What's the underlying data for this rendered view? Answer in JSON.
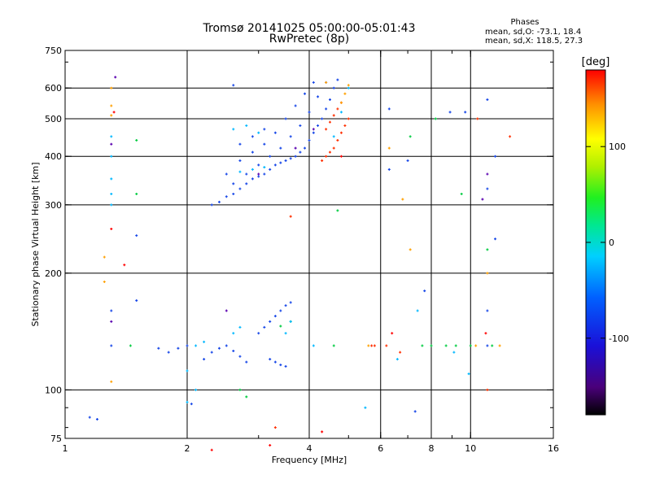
{
  "header": {
    "title_line1": "Tromsø 20141025 05:00:00-05:01:43",
    "title_line2": "RwPretec (8p)"
  },
  "phases_box": {
    "title": "Phases",
    "stat_o": "mean, sd,O: -73.1, 18.4",
    "stat_x": "mean, sd,X: 118.5, 27.3"
  },
  "chart_data": {
    "type": "scatter",
    "xlabel": "Frequency [MHz]",
    "ylabel": "Stationary phase Virtual Height [km]",
    "xscale": "log",
    "yscale": "log",
    "xlim": [
      1,
      16
    ],
    "ylim": [
      75,
      750
    ],
    "xticks": [
      1,
      2,
      4,
      6,
      8,
      10,
      16
    ],
    "xtick_labels": [
      "1",
      "2",
      "4",
      "6",
      "8",
      "10",
      "16"
    ],
    "yticks": [
      75,
      100,
      200,
      300,
      400,
      500,
      600,
      750
    ],
    "ytick_labels": [
      "75",
      "100",
      "200",
      "300",
      "400",
      "500",
      "600",
      "750"
    ],
    "x_gridlines": [
      2,
      4,
      6,
      8,
      10
    ],
    "y_gridlines": [
      100,
      200,
      300,
      400,
      500,
      600
    ],
    "grid": true,
    "colorbar": {
      "label": "[deg]",
      "range": [
        -180,
        180
      ],
      "ticks": [
        100,
        0,
        -100
      ],
      "tick_labels": [
        "100",
        "0",
        "-100"
      ]
    },
    "series": [
      {
        "points": [
          [
            2.3,
            300
          ],
          [
            2.4,
            305
          ],
          [
            2.5,
            315
          ],
          [
            2.6,
            320
          ],
          [
            2.7,
            330
          ],
          [
            2.8,
            340
          ],
          [
            2.9,
            350
          ],
          [
            3.0,
            355
          ],
          [
            3.1,
            360
          ],
          [
            3.2,
            370
          ],
          [
            3.3,
            380
          ],
          [
            3.4,
            385
          ],
          [
            3.5,
            390
          ],
          [
            3.6,
            395
          ],
          [
            3.7,
            400
          ],
          [
            3.8,
            410
          ],
          [
            3.9,
            420
          ],
          [
            4.0,
            440
          ],
          [
            4.1,
            460
          ],
          [
            4.2,
            480
          ],
          [
            4.3,
            500
          ],
          [
            4.4,
            530
          ],
          [
            4.5,
            560
          ],
          [
            4.6,
            600
          ],
          [
            4.7,
            630
          ],
          [
            2.6,
            340
          ],
          [
            2.8,
            360
          ],
          [
            3.0,
            380
          ],
          [
            3.2,
            400
          ],
          [
            3.4,
            420
          ],
          [
            3.6,
            450
          ],
          [
            3.8,
            480
          ],
          [
            4.0,
            520
          ],
          [
            4.2,
            570
          ],
          [
            4.4,
            620
          ],
          [
            2.5,
            360
          ],
          [
            2.7,
            390
          ],
          [
            2.9,
            410
          ],
          [
            3.1,
            430
          ],
          [
            3.3,
            460
          ],
          [
            3.5,
            500
          ],
          [
            3.7,
            540
          ],
          [
            3.9,
            580
          ],
          [
            4.1,
            620
          ],
          [
            2.7,
            430
          ],
          [
            2.9,
            450
          ],
          [
            3.1,
            470
          ],
          [
            2.6,
            610
          ],
          [
            2.2,
            120
          ],
          [
            2.3,
            125
          ],
          [
            2.4,
            128
          ],
          [
            2.5,
            130
          ],
          [
            2.6,
            126
          ],
          [
            2.7,
            122
          ],
          [
            2.8,
            118
          ],
          [
            1.8,
            125
          ],
          [
            1.9,
            128
          ],
          [
            2.0,
            130
          ],
          [
            1.7,
            128
          ],
          [
            3.0,
            140
          ],
          [
            3.1,
            145
          ],
          [
            3.2,
            150
          ],
          [
            3.3,
            155
          ],
          [
            3.4,
            160
          ],
          [
            3.5,
            165
          ],
          [
            3.6,
            168
          ],
          [
            3.2,
            120
          ],
          [
            3.3,
            118
          ],
          [
            3.4,
            116
          ],
          [
            3.5,
            115
          ],
          [
            1.3,
            160
          ],
          [
            1.3,
            130
          ],
          [
            1.5,
            250
          ],
          [
            1.5,
            170
          ],
          [
            6.3,
            530
          ],
          [
            6.3,
            370
          ],
          [
            7.0,
            390
          ],
          [
            8.9,
            520
          ],
          [
            9.7,
            520
          ],
          [
            11.0,
            560
          ],
          [
            11.0,
            330
          ],
          [
            11.0,
            130
          ],
          [
            11.0,
            160
          ],
          [
            11.5,
            400
          ],
          [
            11.5,
            245
          ],
          [
            1.15,
            85
          ],
          [
            1.2,
            84
          ],
          [
            2.05,
            92
          ],
          [
            7.3,
            88
          ],
          [
            7.7,
            180
          ]
        ]
      },
      {
        "points": [
          [
            4.3,
            390
          ],
          [
            4.4,
            400
          ],
          [
            4.5,
            410
          ],
          [
            4.6,
            420
          ],
          [
            4.7,
            440
          ],
          [
            4.8,
            460
          ],
          [
            4.9,
            480
          ],
          [
            5.0,
            500
          ],
          [
            4.4,
            470
          ],
          [
            4.5,
            490
          ],
          [
            4.6,
            510
          ],
          [
            4.7,
            530
          ],
          [
            4.8,
            550
          ],
          [
            3.6,
            280
          ],
          [
            3.3,
            80
          ],
          [
            5.7,
            130
          ],
          [
            5.8,
            130
          ],
          [
            6.2,
            130
          ],
          [
            6.7,
            125
          ],
          [
            11.0,
            100
          ],
          [
            12.5,
            450
          ],
          [
            10.4,
            500
          ]
        ]
      },
      {
        "points": [
          [
            4.8,
            550
          ],
          [
            4.9,
            580
          ],
          [
            5.0,
            610
          ],
          [
            4.4,
            620
          ],
          [
            1.3,
            600
          ],
          [
            1.3,
            540
          ],
          [
            1.3,
            510
          ],
          [
            1.25,
            220
          ],
          [
            1.25,
            190
          ],
          [
            1.3,
            105
          ],
          [
            6.3,
            420
          ],
          [
            6.8,
            310
          ],
          [
            7.1,
            230
          ],
          [
            5.6,
            130
          ],
          [
            10.3,
            130
          ],
          [
            11.8,
            130
          ],
          [
            11.0,
            200
          ]
        ]
      },
      {
        "points": [
          [
            4.6,
            130
          ],
          [
            4.7,
            290
          ],
          [
            3.6,
            150
          ],
          [
            3.4,
            146
          ],
          [
            2.7,
            100
          ],
          [
            2.8,
            96
          ],
          [
            1.5,
            440
          ],
          [
            1.5,
            320
          ],
          [
            1.45,
            130
          ],
          [
            7.1,
            450
          ],
          [
            9.5,
            320
          ],
          [
            8.2,
            500
          ],
          [
            11.0,
            230
          ],
          [
            8.0,
            130
          ],
          [
            7.6,
            130
          ],
          [
            8.7,
            130
          ],
          [
            9.2,
            130
          ],
          [
            10.0,
            130
          ],
          [
            11.3,
            130
          ]
        ]
      },
      {
        "points": [
          [
            1.3,
            450
          ],
          [
            1.3,
            400
          ],
          [
            1.3,
            350
          ],
          [
            1.3,
            320
          ],
          [
            1.3,
            300
          ],
          [
            2.7,
            365
          ],
          [
            2.9,
            370
          ],
          [
            3.1,
            375
          ],
          [
            2.6,
            470
          ],
          [
            2.8,
            480
          ],
          [
            3.0,
            460
          ],
          [
            2.1,
            130
          ],
          [
            2.2,
            133
          ],
          [
            2.0,
            112
          ],
          [
            2.1,
            100
          ],
          [
            2.0,
            93
          ],
          [
            2.6,
            140
          ],
          [
            2.7,
            145
          ],
          [
            3.5,
            140
          ],
          [
            3.6,
            150
          ],
          [
            4.6,
            450
          ],
          [
            4.8,
            520
          ],
          [
            5.0,
            600
          ],
          [
            4.1,
            130
          ],
          [
            5.5,
            90
          ],
          [
            6.6,
            120
          ],
          [
            9.1,
            125
          ],
          [
            9.9,
            110
          ],
          [
            7.4,
            160
          ]
        ]
      },
      {
        "points": [
          [
            1.32,
            520
          ],
          [
            1.4,
            210
          ],
          [
            1.3,
            260
          ],
          [
            2.3,
            70
          ],
          [
            3.2,
            72
          ],
          [
            4.3,
            78
          ],
          [
            4.8,
            400
          ],
          [
            6.4,
            140
          ],
          [
            10.9,
            140
          ]
        ]
      },
      {
        "points": [
          [
            1.33,
            640
          ],
          [
            1.3,
            430
          ],
          [
            1.3,
            150
          ],
          [
            2.5,
            160
          ],
          [
            3.0,
            360
          ],
          [
            3.7,
            420
          ],
          [
            4.1,
            470
          ],
          [
            11.0,
            360
          ],
          [
            10.7,
            310
          ]
        ]
      }
    ]
  }
}
